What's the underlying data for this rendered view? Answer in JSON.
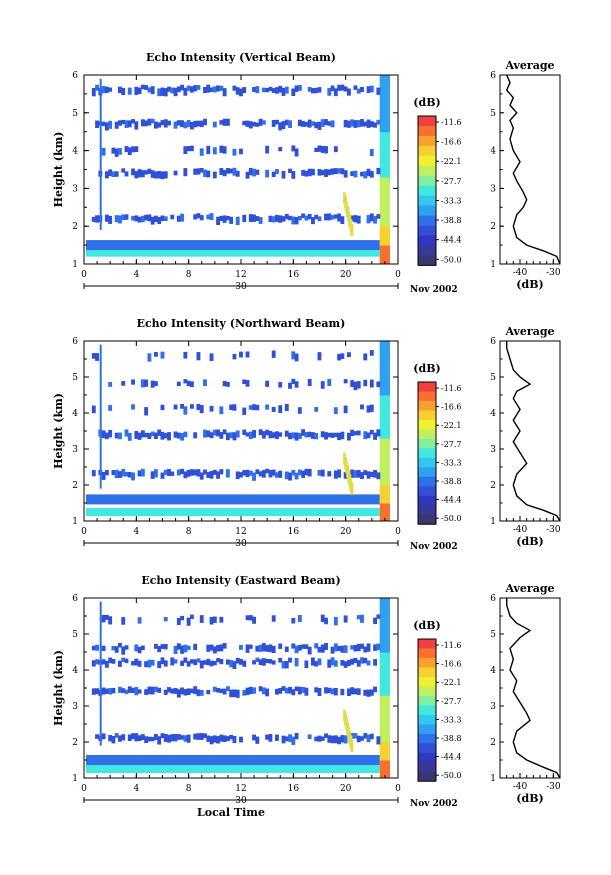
{
  "chart_data": [
    {
      "type": "heatmap",
      "title": "Echo Intensity (Vertical Beam)",
      "ylabel": "Height (km)",
      "xlabel": "",
      "xlim": [
        0,
        24
      ],
      "ylim": [
        1,
        6
      ],
      "x_ticks": [
        "0",
        "4",
        "8",
        "12",
        "16",
        "20",
        "0"
      ],
      "y_ticks": [
        "1",
        "2",
        "3",
        "4",
        "5",
        "6"
      ],
      "date_label": "30",
      "month_label": "Nov 2002",
      "colorbar": {
        "title": "(dB)",
        "ticks": [
          "-11.6",
          "-16.6",
          "-22.1",
          "-27.7",
          "-33.3",
          "-38.8",
          "-44.4",
          "-50.0"
        ]
      },
      "layers": [
        {
          "y": 1.3,
          "coverage": "continuous",
          "intensity": "strong"
        },
        {
          "y": 1.5,
          "coverage": "continuous",
          "intensity": "medium"
        },
        {
          "y": 2.2,
          "coverage": "dense",
          "intensity": "weak"
        },
        {
          "y": 3.4,
          "coverage": "dense",
          "intensity": "weak"
        },
        {
          "y": 4.0,
          "coverage": "sparse",
          "intensity": "weak"
        },
        {
          "y": 4.7,
          "coverage": "dense",
          "intensity": "weak"
        },
        {
          "y": 5.6,
          "coverage": "dense",
          "intensity": "weak"
        }
      ],
      "average_profile": {
        "title": "Average",
        "xlabel": "(dB)",
        "x_ticks": [
          "-40",
          "-30"
        ],
        "xlim": [
          -46,
          -28
        ],
        "y_ticks": [
          "1",
          "2",
          "3",
          "4",
          "5",
          "6"
        ],
        "points": [
          [
            -28,
            1.0
          ],
          [
            -29,
            1.2
          ],
          [
            -33,
            1.35
          ],
          [
            -38,
            1.5
          ],
          [
            -41,
            1.7
          ],
          [
            -42,
            2.0
          ],
          [
            -41,
            2.3
          ],
          [
            -39,
            2.5
          ],
          [
            -38,
            2.7
          ],
          [
            -39,
            2.9
          ],
          [
            -41,
            3.2
          ],
          [
            -42,
            3.4
          ],
          [
            -40,
            3.7
          ],
          [
            -42,
            4.0
          ],
          [
            -43,
            4.3
          ],
          [
            -42,
            4.6
          ],
          [
            -43,
            4.8
          ],
          [
            -41,
            5.0
          ],
          [
            -43,
            5.2
          ],
          [
            -42,
            5.4
          ],
          [
            -44,
            5.6
          ],
          [
            -43,
            5.8
          ],
          [
            -44,
            6.0
          ]
        ]
      }
    },
    {
      "type": "heatmap",
      "title": "Echo Intensity (Northward Beam)",
      "ylabel": "Height (km)",
      "xlabel": "",
      "xlim": [
        0,
        24
      ],
      "ylim": [
        1,
        6
      ],
      "x_ticks": [
        "0",
        "4",
        "8",
        "12",
        "16",
        "20",
        "0"
      ],
      "y_ticks": [
        "1",
        "2",
        "3",
        "4",
        "5",
        "6"
      ],
      "date_label": "30",
      "month_label": "Nov 2002",
      "colorbar": {
        "title": "(dB)",
        "ticks": [
          "-11.6",
          "-16.6",
          "-22.1",
          "-27.7",
          "-33.3",
          "-38.8",
          "-44.4",
          "-50.0"
        ]
      },
      "layers": [
        {
          "y": 1.25,
          "coverage": "continuous",
          "intensity": "strong"
        },
        {
          "y": 1.6,
          "coverage": "continuous",
          "intensity": "medium"
        },
        {
          "y": 2.3,
          "coverage": "dense",
          "intensity": "weak"
        },
        {
          "y": 3.4,
          "coverage": "dense",
          "intensity": "weak"
        },
        {
          "y": 4.1,
          "coverage": "sparse",
          "intensity": "weak"
        },
        {
          "y": 4.8,
          "coverage": "sparse",
          "intensity": "weak"
        },
        {
          "y": 5.6,
          "coverage": "sparse",
          "intensity": "weak"
        }
      ],
      "average_profile": {
        "title": "Average",
        "xlabel": "(dB)",
        "x_ticks": [
          "-40",
          "-30"
        ],
        "xlim": [
          -46,
          -28
        ],
        "y_ticks": [
          "1",
          "2",
          "3",
          "4",
          "5",
          "6"
        ],
        "points": [
          [
            -28,
            1.0
          ],
          [
            -29,
            1.15
          ],
          [
            -33,
            1.3
          ],
          [
            -38,
            1.45
          ],
          [
            -41,
            1.7
          ],
          [
            -42,
            2.0
          ],
          [
            -41,
            2.3
          ],
          [
            -38,
            2.6
          ],
          [
            -40,
            2.9
          ],
          [
            -42,
            3.2
          ],
          [
            -40,
            3.5
          ],
          [
            -42,
            3.8
          ],
          [
            -40,
            4.1
          ],
          [
            -42,
            4.4
          ],
          [
            -41,
            4.6
          ],
          [
            -37,
            4.8
          ],
          [
            -40,
            5.0
          ],
          [
            -42,
            5.2
          ],
          [
            -43,
            5.5
          ],
          [
            -44,
            5.8
          ],
          [
            -44,
            6.0
          ]
        ]
      }
    },
    {
      "type": "heatmap",
      "title": "Echo Intensity (Eastward Beam)",
      "ylabel": "Height (km)",
      "xlabel": "Local Time",
      "xlim": [
        0,
        24
      ],
      "ylim": [
        1,
        6
      ],
      "x_ticks": [
        "0",
        "4",
        "8",
        "12",
        "16",
        "20",
        "0"
      ],
      "y_ticks": [
        "1",
        "2",
        "3",
        "4",
        "5",
        "6"
      ],
      "date_label": "30",
      "month_label": "Nov 2002",
      "colorbar": {
        "title": "(dB)",
        "ticks": [
          "-11.6",
          "-16.6",
          "-22.1",
          "-27.7",
          "-33.3",
          "-38.8",
          "-44.4",
          "-50.0"
        ]
      },
      "layers": [
        {
          "y": 1.25,
          "coverage": "continuous",
          "intensity": "strong"
        },
        {
          "y": 1.5,
          "coverage": "continuous",
          "intensity": "medium"
        },
        {
          "y": 2.1,
          "coverage": "dense",
          "intensity": "weak"
        },
        {
          "y": 3.4,
          "coverage": "dense",
          "intensity": "weak"
        },
        {
          "y": 4.2,
          "coverage": "dense",
          "intensity": "weak"
        },
        {
          "y": 4.6,
          "coverage": "dense",
          "intensity": "weak"
        },
        {
          "y": 5.4,
          "coverage": "sparse",
          "intensity": "weak"
        }
      ],
      "average_profile": {
        "title": "Average",
        "xlabel": "(dB)",
        "x_ticks": [
          "-40",
          "-30"
        ],
        "xlim": [
          -46,
          -28
        ],
        "y_ticks": [
          "1",
          "2",
          "3",
          "4",
          "5",
          "6"
        ],
        "points": [
          [
            -28,
            1.0
          ],
          [
            -29,
            1.15
          ],
          [
            -33,
            1.3
          ],
          [
            -38,
            1.5
          ],
          [
            -41,
            1.7
          ],
          [
            -42,
            2.0
          ],
          [
            -41,
            2.3
          ],
          [
            -37,
            2.6
          ],
          [
            -38,
            2.8
          ],
          [
            -40,
            3.1
          ],
          [
            -42,
            3.4
          ],
          [
            -41,
            3.7
          ],
          [
            -43,
            4.0
          ],
          [
            -42,
            4.3
          ],
          [
            -43,
            4.6
          ],
          [
            -40,
            4.9
          ],
          [
            -37,
            5.1
          ],
          [
            -41,
            5.3
          ],
          [
            -43,
            5.5
          ],
          [
            -44,
            5.8
          ],
          [
            -44,
            6.0
          ]
        ]
      }
    }
  ]
}
